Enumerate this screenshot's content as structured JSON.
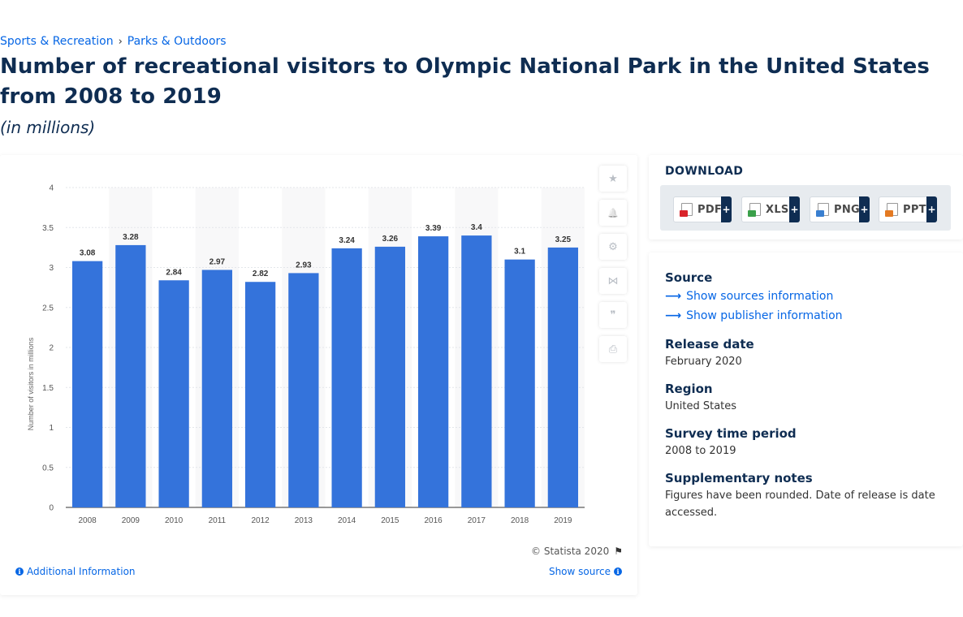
{
  "breadcrumb": {
    "items": [
      "Sports & Recreation",
      "Parks & Outdoors"
    ],
    "separator": "›"
  },
  "page": {
    "title": "Number of recreational visitors to Olympic National Park in the United States from 2008 to 2019",
    "subtitle": "(in millions)"
  },
  "chart_data": {
    "type": "bar",
    "categories": [
      "2008",
      "2009",
      "2010",
      "2011",
      "2012",
      "2013",
      "2014",
      "2015",
      "2016",
      "2017",
      "2018",
      "2019"
    ],
    "values": [
      3.08,
      3.28,
      2.84,
      2.97,
      2.82,
      2.93,
      3.24,
      3.26,
      3.39,
      3.4,
      3.1,
      3.25
    ],
    "value_labels": [
      "3.08",
      "3.28",
      "2.84",
      "2.97",
      "2.82",
      "2.93",
      "3.24",
      "3.26",
      "3.39",
      "3.4",
      "3.1",
      "3.25"
    ],
    "ylabel": "Number of visitors in millions",
    "xlabel": "",
    "ylim": [
      0,
      4
    ],
    "yticks": [
      0,
      0.5,
      1,
      1.5,
      2,
      2.5,
      3,
      3.5,
      4
    ],
    "ytick_labels": [
      "0",
      "0.5",
      "1",
      "1.5",
      "2",
      "2.5",
      "3",
      "3.5",
      "4"
    ],
    "grid": true,
    "bar_color": "#3473db",
    "alt_band_color": "#f8f8f9"
  },
  "chart_meta": {
    "copyright": "© Statista 2020",
    "additional_info": "Additional Information",
    "show_source": "Show source"
  },
  "tools": [
    {
      "name": "star-icon",
      "glyph": "★"
    },
    {
      "name": "bell-icon",
      "glyph": "🔔"
    },
    {
      "name": "gear-icon",
      "glyph": "⚙"
    },
    {
      "name": "share-icon",
      "glyph": "⋈"
    },
    {
      "name": "quote-icon",
      "glyph": "❞"
    },
    {
      "name": "print-icon",
      "glyph": "⎙"
    }
  ],
  "download": {
    "title": "DOWNLOAD",
    "buttons": [
      {
        "label": "PDF",
        "plus": "+",
        "badge_color": "#d9232a"
      },
      {
        "label": "XLS",
        "plus": "+",
        "badge_color": "#3aa04a"
      },
      {
        "label": "PNG",
        "plus": "+",
        "badge_color": "#3a7fd0"
      },
      {
        "label": "PPT",
        "plus": "+",
        "badge_color": "#e47a22"
      }
    ]
  },
  "meta": {
    "source_heading": "Source",
    "show_sources": "Show sources information",
    "show_publisher": "Show publisher information",
    "release_heading": "Release date",
    "release_value": "February 2020",
    "region_heading": "Region",
    "region_value": "United States",
    "survey_heading": "Survey time period",
    "survey_value": "2008 to 2019",
    "notes_heading": "Supplementary notes",
    "notes_value": "Figures have been rounded. Date of release is date accessed."
  }
}
